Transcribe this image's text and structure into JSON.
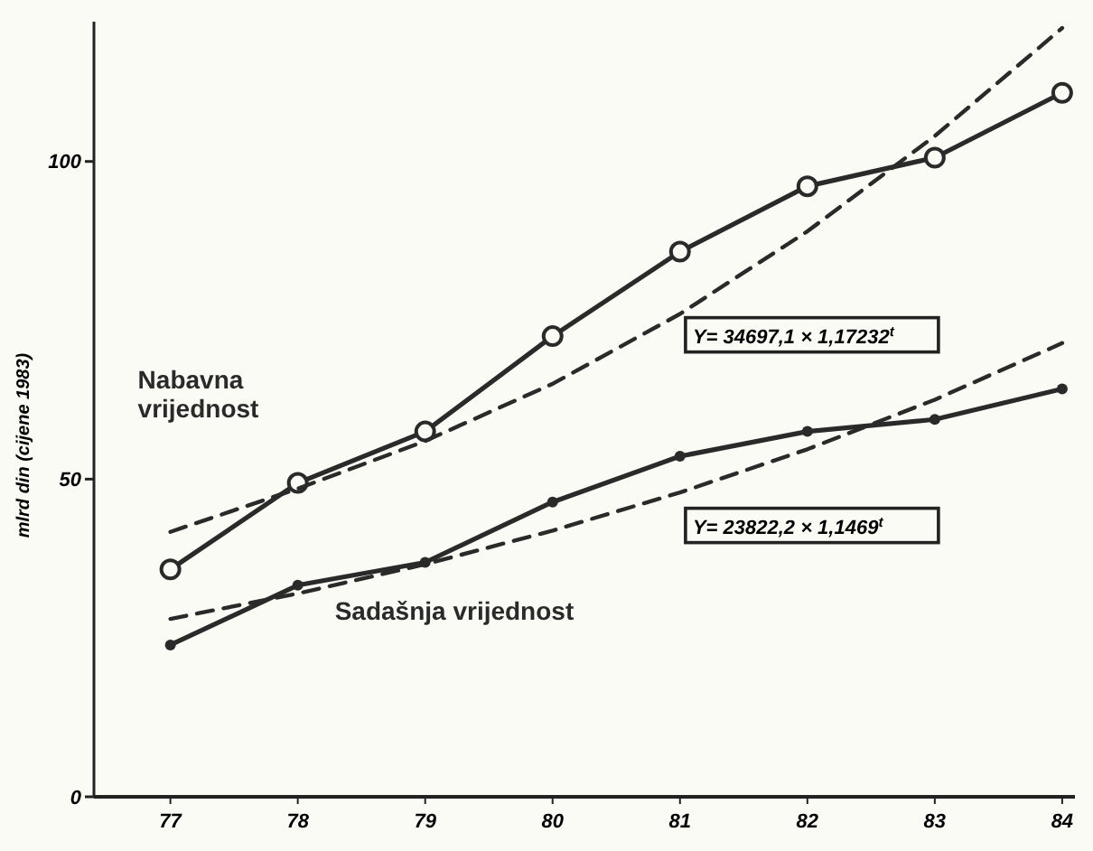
{
  "chart_data": {
    "type": "line",
    "ylabel": "mlrd din (cijene 1983)",
    "x": [
      77,
      78,
      79,
      80,
      81,
      82,
      83,
      84
    ],
    "xlim": [
      76.4,
      84.1
    ],
    "xticks": [
      77,
      78,
      79,
      80,
      81,
      82,
      83,
      84
    ],
    "ylim": [
      0,
      122
    ],
    "yticks": [
      0,
      50,
      100
    ],
    "grid": false,
    "series": [
      {
        "name": "Nabavna vrijednost",
        "color": "#2a2a2a",
        "marker": "circle",
        "line_style": "solid",
        "values": [
          35.8,
          49.4,
          57.5,
          72.5,
          85.8,
          96.1,
          100.6,
          110.8
        ]
      },
      {
        "name": "Sadašnja vrijednost",
        "color": "#2a2a2a",
        "marker": "dot",
        "line_style": "solid",
        "values": [
          23.9,
          33.3,
          36.9,
          46.4,
          53.6,
          57.5,
          59.4,
          64.2
        ]
      },
      {
        "color": "#2a2a2a",
        "marker": "none",
        "line_style": "dashed",
        "values": [
          41.7,
          48.5,
          56,
          65,
          76,
          89,
          104,
          121
        ]
      },
      {
        "color": "#2a2a2a",
        "marker": "none",
        "line_style": "dashed",
        "values": [
          28,
          32,
          36.6,
          41.9,
          47.9,
          54.7,
          62.5,
          71.4
        ]
      }
    ],
    "annotations": [
      "Y= 34697,1 × 1,17232$^{t}$",
      "Y= 23822,2 × 1,1469$^{t}$"
    ]
  }
}
